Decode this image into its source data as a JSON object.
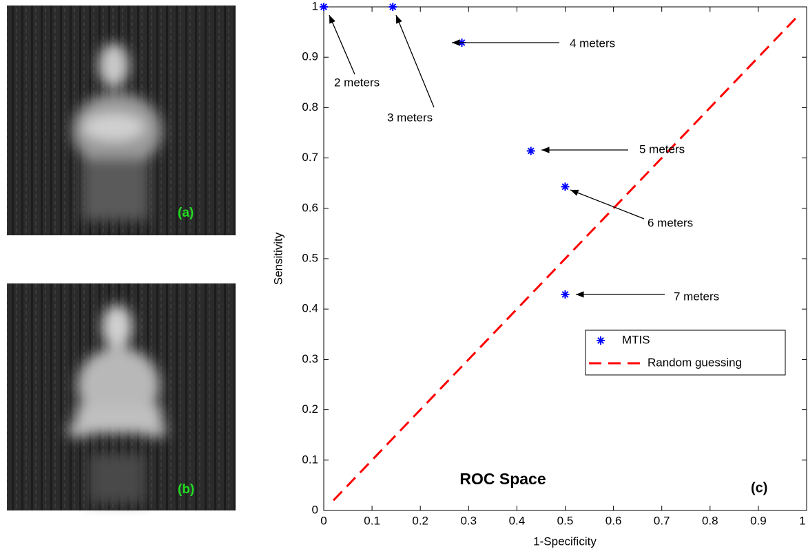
{
  "images": [
    "(a)",
    "(b)"
  ],
  "chart_data": {
    "type": "scatter",
    "title": "ROC Space",
    "label": "(c)",
    "xlabel": "1-Specificity",
    "ylabel": "Sensitivity",
    "xlim": [
      0,
      1
    ],
    "ylim": [
      0,
      1
    ],
    "xticks": [
      0,
      0.1,
      0.2,
      0.3,
      0.4,
      0.5,
      0.6,
      0.7,
      0.8,
      0.9,
      1
    ],
    "yticks": [
      0,
      0.1,
      0.2,
      0.3,
      0.4,
      0.5,
      0.6,
      0.7,
      0.8,
      0.9,
      1
    ],
    "series": [
      {
        "name": "MTIS",
        "type": "scatter",
        "color": "#0000ff",
        "x": [
          0,
          0.143,
          0.286,
          0.429,
          0.5,
          0.5
        ],
        "values": [
          1,
          1,
          0.929,
          0.714,
          0.643,
          0.429
        ]
      },
      {
        "name": "Random guessing",
        "type": "line",
        "color": "#ff0000",
        "x": [
          0.02,
          0.98
        ],
        "values": [
          0.02,
          0.98
        ]
      }
    ],
    "annotations": [
      "2 meters",
      "3 meters",
      "4 meters",
      "5 meters",
      "6 meters",
      "7 meters"
    ],
    "legend": "upper right"
  }
}
